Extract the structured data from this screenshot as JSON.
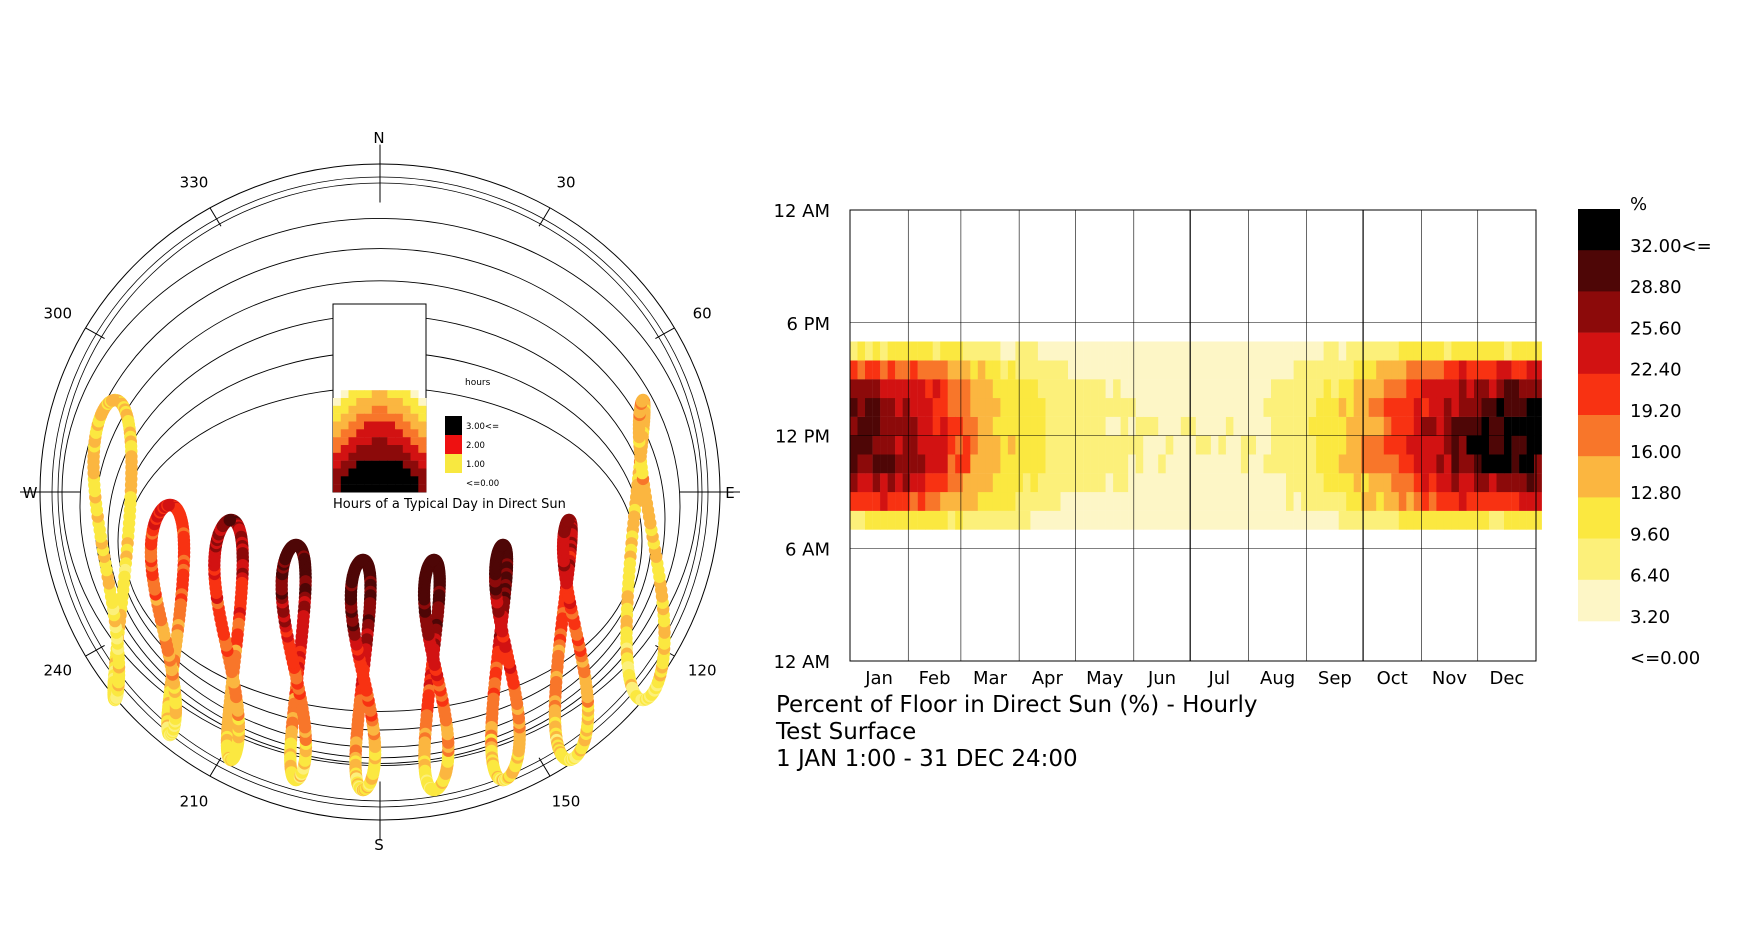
{
  "sunpath": {
    "compass": {
      "north": "N",
      "south": "S",
      "east": "E",
      "west": "W"
    },
    "azimuth_labels": [
      {
        "angle": 30,
        "text": "30"
      },
      {
        "angle": 60,
        "text": "60"
      },
      {
        "angle": 120,
        "text": "120"
      },
      {
        "angle": 150,
        "text": "150"
      },
      {
        "angle": 210,
        "text": "210"
      },
      {
        "angle": 240,
        "text": "240"
      },
      {
        "angle": 300,
        "text": "300"
      },
      {
        "angle": 330,
        "text": "330"
      }
    ],
    "inset_title": "Hours of a Typical Day in Direct Sun",
    "inset_legend": {
      "title": "hours",
      "labels": [
        "3.00<=",
        "2.00",
        "1.00",
        "<=0.00"
      ],
      "colors": [
        "#000000",
        "#ee1111",
        "#f8e840",
        "#ffffff"
      ]
    },
    "analemma_count": 9
  },
  "chart_data": {
    "type": "heatmap",
    "title": "Percent of Floor in Direct Sun (%) - Hourly",
    "subtitle": "Test Surface",
    "period": "1 JAN 1:00 - 31 DEC 24:00",
    "x_tick_labels": [
      "Jan",
      "Feb",
      "Mar",
      "Apr",
      "May",
      "Jun",
      "Jul",
      "Aug",
      "Sep",
      "Oct",
      "Nov",
      "Dec"
    ],
    "y_tick_labels": [
      "12 AM",
      "6 PM",
      "12 PM",
      "6 AM",
      "12 AM"
    ],
    "day_range": [
      1,
      365
    ],
    "hour_range": [
      0,
      24
    ],
    "sun_hours": {
      "summer": [
        7,
        17
      ],
      "winter": [
        8,
        16
      ]
    },
    "monthly_peak_noon_percent": [
      30,
      24,
      14,
      9,
      7,
      6,
      6,
      7,
      12,
      20,
      29,
      33
    ],
    "legend": {
      "unit": "%",
      "labels": [
        "32.00<=",
        "28.80",
        "25.60",
        "22.40",
        "19.20",
        "16.00",
        "12.80",
        "9.60",
        "6.40",
        "3.20",
        "<=0.00"
      ],
      "colors": [
        "#000000",
        "#4e0606",
        "#8c0a0a",
        "#d21212",
        "#f83212",
        "#f8762a",
        "#fbb640",
        "#fbe840",
        "#fcf07a",
        "#fdf6c6",
        "#ffffff"
      ]
    }
  }
}
